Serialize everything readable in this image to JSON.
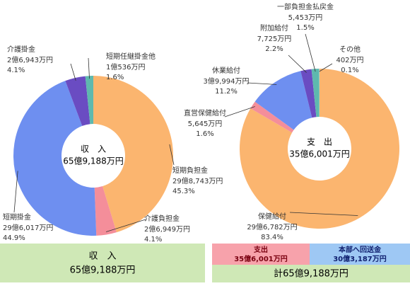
{
  "chart_data": [
    {
      "type": "pie",
      "center_title": "収　入",
      "center_value": "65億9,188万円",
      "categories": [
        "短期負担金",
        "介護負担金",
        "短期掛金",
        "介護掛金",
        "短期任継掛金他"
      ],
      "amounts": [
        "29億8,743万円",
        "2億6,949万円",
        "29億6,017万円",
        "2億6,943万円",
        "1億536万円"
      ],
      "values": [
        45.3,
        4.1,
        44.9,
        4.1,
        1.6
      ],
      "value_labels": [
        "45.3%",
        "4.1%",
        "44.9%",
        "4.1%",
        "1.6%"
      ],
      "colors": [
        "#fbb56f",
        "#f48e9a",
        "#6e8ff0",
        "#6a4cc2",
        "#5eb9ae"
      ]
    },
    {
      "type": "pie",
      "center_title": "支　出",
      "center_value": "35億6,001万円",
      "categories": [
        "保健給付",
        "直営保健給付",
        "休業給付",
        "附加給付",
        "一部負担金払戻金",
        "その他"
      ],
      "amounts": [
        "29億6,782万円",
        "5,645万円",
        "3億9,994万円",
        "7,725万円",
        "5,453万円",
        "402万円"
      ],
      "values": [
        83.4,
        1.6,
        11.2,
        2.2,
        1.5,
        0.1
      ],
      "value_labels": [
        "83.4%",
        "1.6%",
        "11.2%",
        "2.2%",
        "1.5%",
        "0.1%"
      ],
      "colors": [
        "#fbb56f",
        "#f48e9a",
        "#6e8ff0",
        "#6a4cc2",
        "#5eb9ae",
        "#9ad0d8"
      ]
    }
  ],
  "summary": {
    "income": {
      "title": "収　入",
      "amount": "65億9,188万円"
    },
    "expense": {
      "title": "支出",
      "amount": "35億6,001万円"
    },
    "transfer": {
      "title": "本部へ回送金",
      "amount": "30億3,187万円"
    },
    "total": "計65億9,188万円"
  }
}
